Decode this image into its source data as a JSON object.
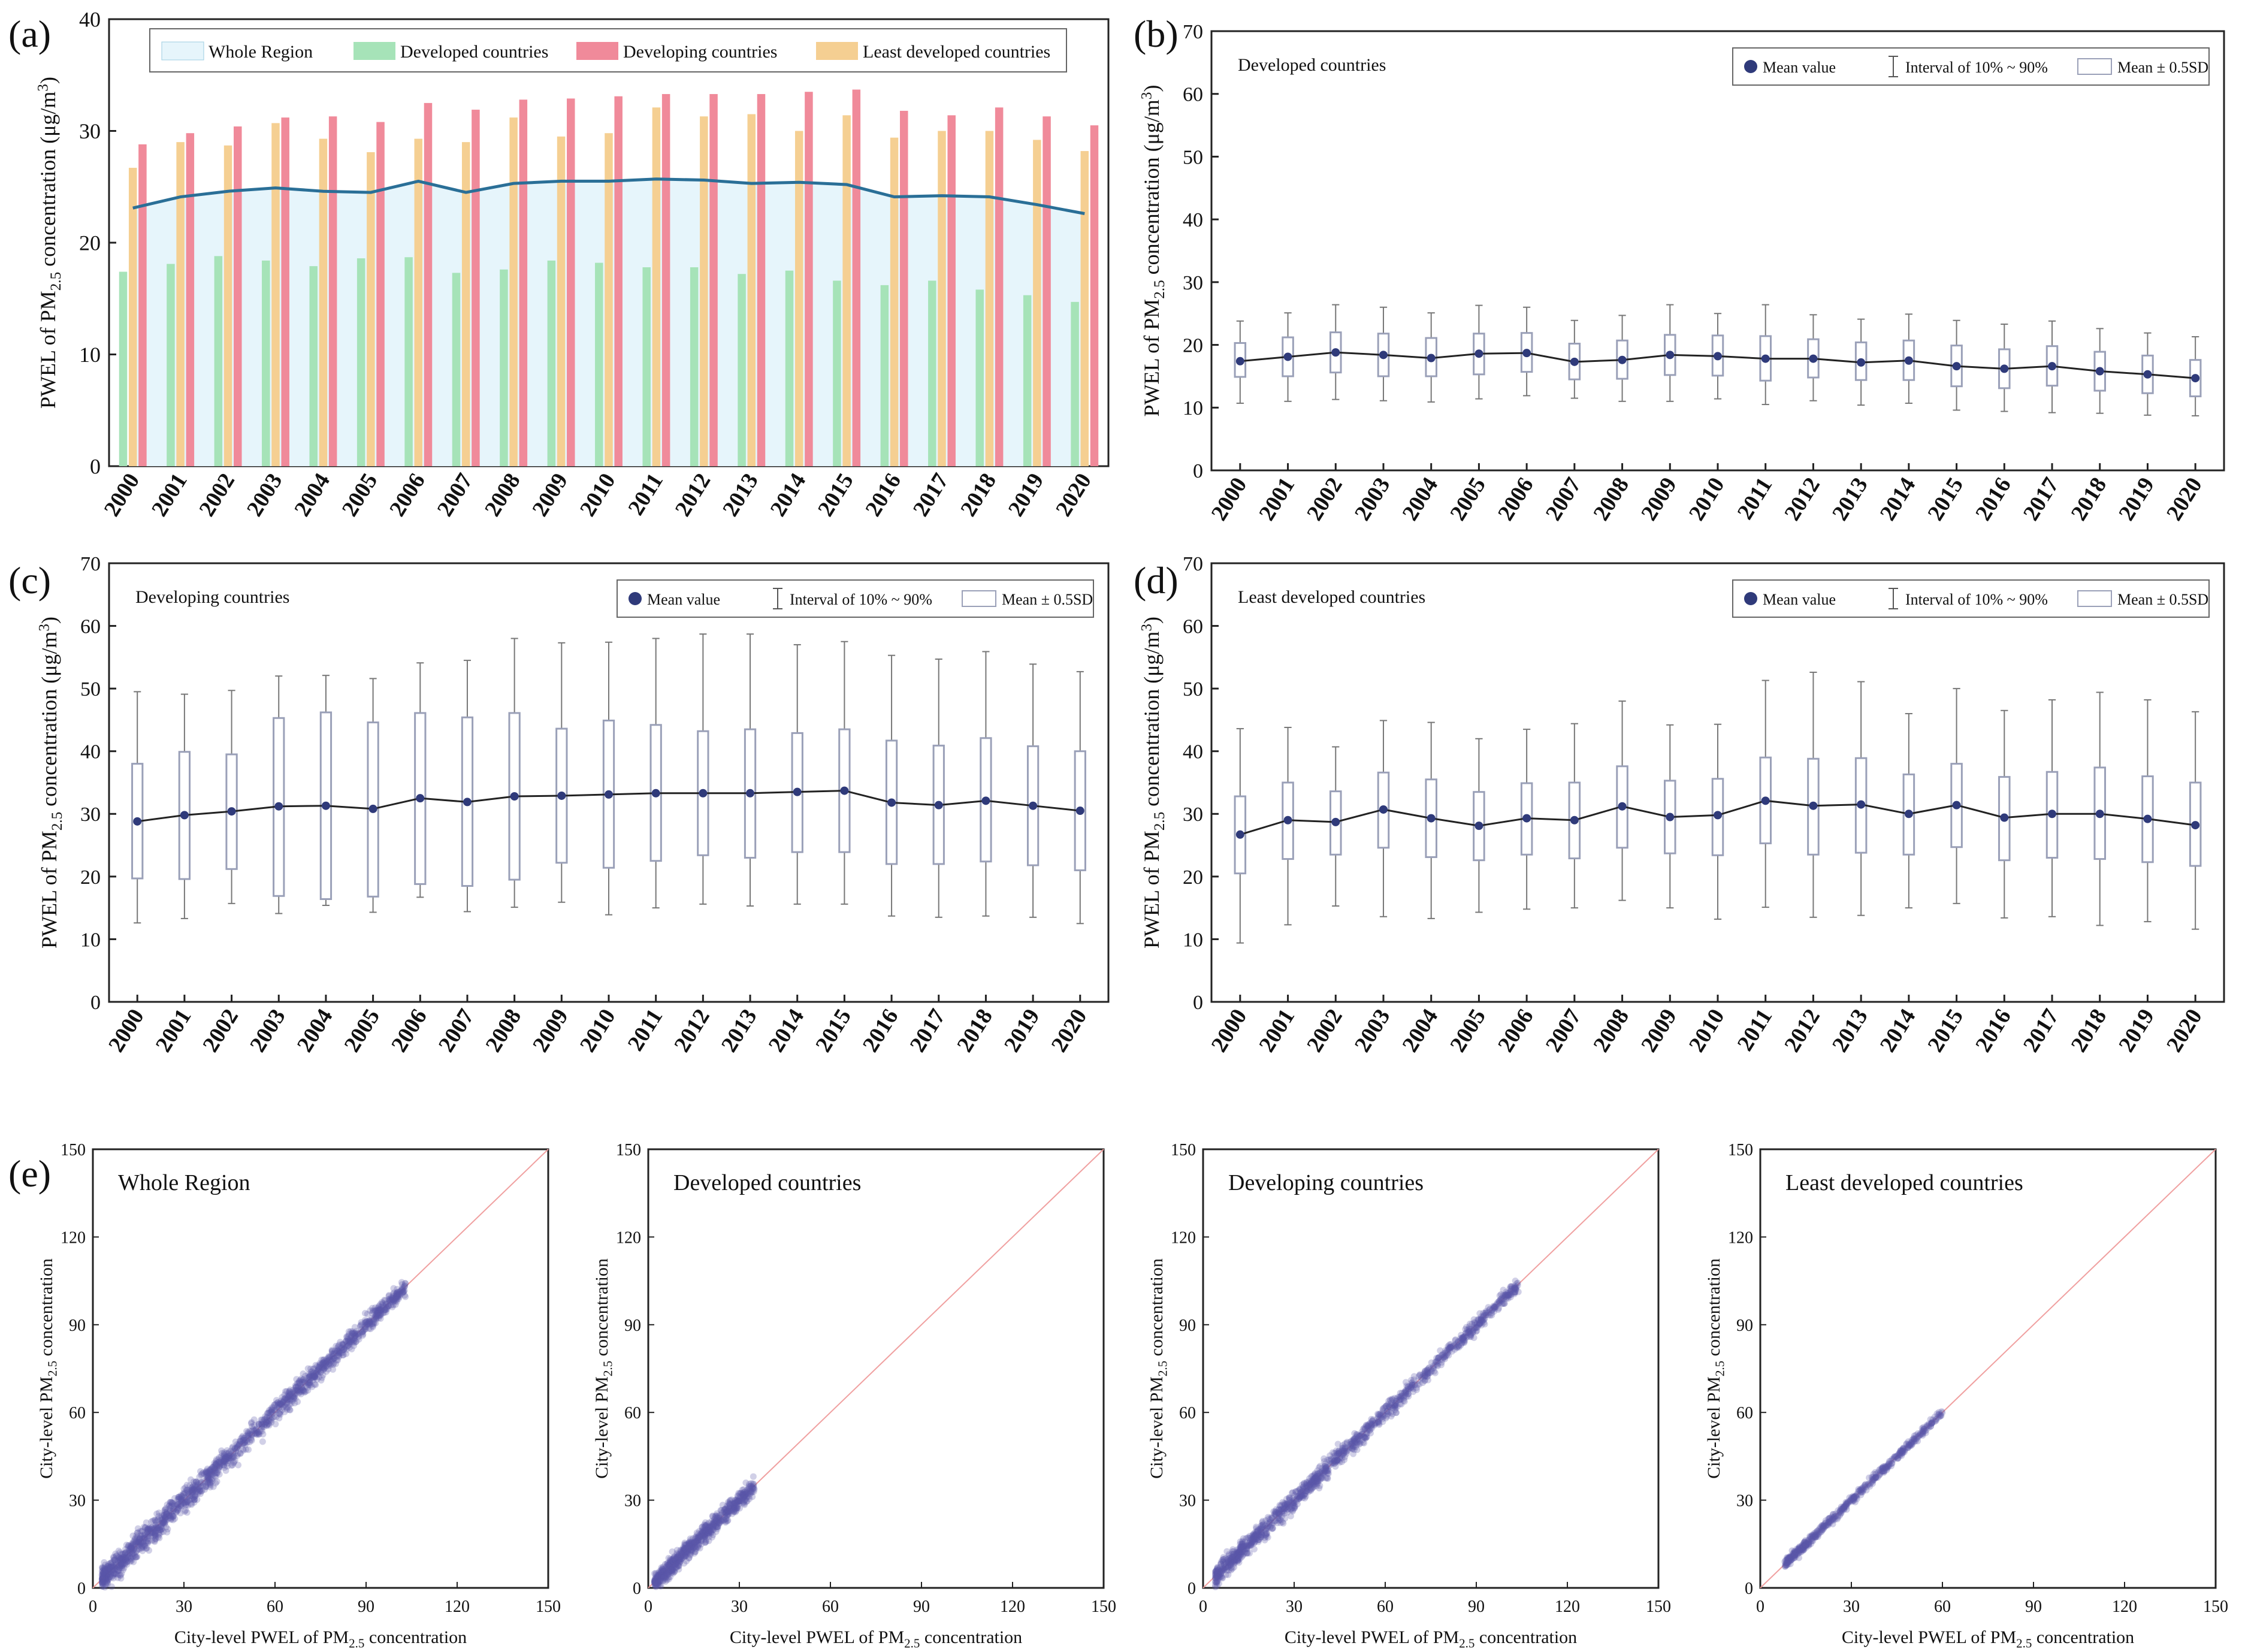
{
  "years": [
    "2000",
    "2001",
    "2002",
    "2003",
    "2004",
    "2005",
    "2006",
    "2007",
    "2008",
    "2009",
    "2010",
    "2011",
    "2012",
    "2013",
    "2014",
    "2015",
    "2016",
    "2017",
    "2018",
    "2019",
    "2020"
  ],
  "colors": {
    "developed": "#a6e3b8",
    "developing": "#f08a9a",
    "least": "#f5cf92",
    "whole_line": "#2a6f97",
    "whole_fill": "#e6f5fb",
    "mean_dot": "#2f3a7a",
    "box": "#9aa0b8",
    "scatter": "#5b55a8",
    "diag": "#f0a0a0",
    "axis": "#222222"
  },
  "panels": {
    "a": {
      "label": "(a)",
      "ylabel": "PWEL of PM",
      "ylabel_sub": "2.5",
      "ylabel_rest": " concentration (μg/m",
      "ylabel_sup": "3",
      "ylabel_end": ")",
      "legend": [
        "Whole Region",
        "Developed countries",
        "Developing countries",
        "Least developed countries"
      ]
    },
    "b": {
      "label": "(b)",
      "title": "Developed countries"
    },
    "c": {
      "label": "(c)",
      "title": "Developing countries"
    },
    "d": {
      "label": "(d)",
      "title": "Least developed countries"
    },
    "box_legend": [
      "Mean value",
      "Interval of 10% ~ 90%",
      "Mean ± 0.5SD"
    ],
    "e": {
      "label": "(e)",
      "titles": [
        "Whole Region",
        "Developed countries",
        "Developing countries",
        "Least developed countries"
      ],
      "ylabel": "City-level PM",
      "ylabel_sub": "2.5",
      "ylabel_rest": " concentration",
      "xlabel": "City-level PWEL of PM",
      "xlabel_sub": "2.5",
      "xlabel_rest": " concentration"
    }
  },
  "chart_data": [
    {
      "id": "a",
      "type": "bar",
      "title": "",
      "xlabel": "",
      "ylabel": "PWEL of PM2.5 concentration (μg/m3)",
      "ylim": [
        0,
        40
      ],
      "yticks": [
        0,
        10,
        20,
        30,
        40
      ],
      "categories": [
        "2000",
        "2001",
        "2002",
        "2003",
        "2004",
        "2005",
        "2006",
        "2007",
        "2008",
        "2009",
        "2010",
        "2011",
        "2012",
        "2013",
        "2014",
        "2015",
        "2016",
        "2017",
        "2018",
        "2019",
        "2020"
      ],
      "series": [
        {
          "name": "Developed countries",
          "values": [
            17.4,
            18.1,
            18.8,
            18.4,
            17.9,
            18.6,
            18.7,
            17.3,
            17.6,
            18.4,
            18.2,
            17.8,
            17.8,
            17.2,
            17.5,
            16.6,
            16.2,
            16.6,
            15.8,
            15.3,
            14.7
          ]
        },
        {
          "name": "Least developed countries",
          "values": [
            26.7,
            29.0,
            28.7,
            30.7,
            29.3,
            28.1,
            29.3,
            29.0,
            31.2,
            29.5,
            29.8,
            32.1,
            31.3,
            31.5,
            30.0,
            31.4,
            29.4,
            30.0,
            30.0,
            29.2,
            28.2
          ]
        },
        {
          "name": "Developing countries",
          "values": [
            28.8,
            29.8,
            30.4,
            31.2,
            31.3,
            30.8,
            32.5,
            31.9,
            32.8,
            32.9,
            33.1,
            33.3,
            33.3,
            33.3,
            33.5,
            33.7,
            31.8,
            31.4,
            32.1,
            31.3,
            30.5
          ]
        },
        {
          "name": "Whole Region",
          "type": "line",
          "values": [
            23.1,
            24.1,
            24.6,
            24.9,
            24.6,
            24.5,
            25.5,
            24.5,
            25.3,
            25.5,
            25.5,
            25.7,
            25.6,
            25.3,
            25.4,
            25.2,
            24.1,
            24.2,
            24.1,
            23.4,
            22.6
          ]
        }
      ]
    },
    {
      "id": "b",
      "type": "box",
      "title": "Developed countries",
      "ylabel": "PWEL of PM2.5 concentration (μg/m3)",
      "ylim": [
        0,
        70
      ],
      "yticks": [
        0,
        10,
        20,
        30,
        40,
        50,
        60,
        70
      ],
      "categories": [
        "2000",
        "2001",
        "2002",
        "2003",
        "2004",
        "2005",
        "2006",
        "2007",
        "2008",
        "2009",
        "2010",
        "2011",
        "2012",
        "2013",
        "2014",
        "2015",
        "2016",
        "2017",
        "2018",
        "2019",
        "2020"
      ],
      "mean": [
        17.4,
        18.1,
        18.8,
        18.4,
        17.9,
        18.6,
        18.7,
        17.3,
        17.6,
        18.4,
        18.2,
        17.8,
        17.8,
        17.2,
        17.5,
        16.6,
        16.2,
        16.6,
        15.8,
        15.3,
        14.7
      ],
      "p10": [
        10.7,
        11.0,
        11.3,
        11.1,
        10.9,
        11.4,
        11.9,
        11.5,
        11.0,
        11.0,
        11.4,
        10.5,
        11.1,
        10.4,
        10.7,
        9.6,
        9.4,
        9.2,
        9.1,
        8.8,
        8.7
      ],
      "p90": [
        23.8,
        25.1,
        26.4,
        26.0,
        25.1,
        26.3,
        26.0,
        23.9,
        24.7,
        26.4,
        25.0,
        26.4,
        24.8,
        24.1,
        24.9,
        23.9,
        23.3,
        23.8,
        22.6,
        21.9,
        21.3
      ],
      "sd_lo": [
        14.9,
        15.0,
        15.6,
        15.0,
        15.0,
        15.3,
        15.7,
        14.5,
        14.6,
        15.2,
        15.1,
        14.3,
        14.8,
        14.4,
        14.4,
        13.4,
        13.1,
        13.5,
        12.7,
        12.3,
        11.8
      ],
      "sd_hi": [
        20.3,
        21.2,
        22.0,
        21.8,
        21.1,
        21.8,
        21.9,
        20.2,
        20.7,
        21.6,
        21.5,
        21.4,
        20.9,
        20.4,
        20.7,
        19.9,
        19.3,
        19.8,
        18.9,
        18.3,
        17.6
      ]
    },
    {
      "id": "c",
      "type": "box",
      "title": "Developing countries",
      "ylabel": "PWEL of PM2.5 concentration (μg/m3)",
      "ylim": [
        0,
        70
      ],
      "yticks": [
        0,
        10,
        20,
        30,
        40,
        50,
        60,
        70
      ],
      "categories": [
        "2000",
        "2001",
        "2002",
        "2003",
        "2004",
        "2005",
        "2006",
        "2007",
        "2008",
        "2009",
        "2010",
        "2011",
        "2012",
        "2013",
        "2014",
        "2015",
        "2016",
        "2017",
        "2018",
        "2019",
        "2020"
      ],
      "mean": [
        28.8,
        29.8,
        30.4,
        31.2,
        31.3,
        30.8,
        32.5,
        31.9,
        32.8,
        32.9,
        33.1,
        33.3,
        33.3,
        33.3,
        33.5,
        33.7,
        31.8,
        31.4,
        32.1,
        31.3,
        30.5
      ],
      "p10": [
        12.6,
        13.3,
        15.7,
        14.1,
        15.4,
        14.3,
        16.7,
        14.4,
        15.1,
        15.9,
        13.9,
        15.0,
        15.6,
        15.3,
        15.6,
        15.6,
        13.7,
        13.5,
        13.7,
        13.5,
        12.5
      ],
      "p90": [
        49.5,
        49.1,
        49.7,
        52.0,
        52.1,
        51.6,
        54.1,
        54.5,
        58.0,
        57.3,
        57.4,
        58.0,
        58.7,
        58.7,
        57.0,
        57.5,
        55.3,
        54.7,
        55.9,
        53.9,
        52.7
      ],
      "sd_lo": [
        19.7,
        19.6,
        21.2,
        16.9,
        16.4,
        16.8,
        18.8,
        18.5,
        19.5,
        22.2,
        21.4,
        22.5,
        23.4,
        23.0,
        23.9,
        23.9,
        22.0,
        22.0,
        22.4,
        21.8,
        21.0
      ],
      "sd_hi": [
        38.0,
        39.9,
        39.5,
        45.3,
        46.2,
        44.6,
        46.1,
        45.4,
        46.1,
        43.6,
        44.9,
        44.2,
        43.2,
        43.5,
        42.9,
        43.5,
        41.7,
        40.9,
        42.1,
        40.8,
        40.0
      ]
    },
    {
      "id": "d",
      "type": "box",
      "title": "Least developed countries",
      "ylabel": "PWEL of PM2.5 concentration (μg/m3)",
      "ylim": [
        0,
        70
      ],
      "yticks": [
        0,
        10,
        20,
        30,
        40,
        50,
        60,
        70
      ],
      "categories": [
        "2000",
        "2001",
        "2002",
        "2003",
        "2004",
        "2005",
        "2006",
        "2007",
        "2008",
        "2009",
        "2010",
        "2011",
        "2012",
        "2013",
        "2014",
        "2015",
        "2016",
        "2017",
        "2018",
        "2019",
        "2020"
      ],
      "mean": [
        26.7,
        29.0,
        28.7,
        30.7,
        29.3,
        28.1,
        29.3,
        29.0,
        31.2,
        29.5,
        29.8,
        32.1,
        31.3,
        31.5,
        30.0,
        31.4,
        29.4,
        30.0,
        30.0,
        29.2,
        28.2
      ],
      "p10": [
        9.4,
        12.3,
        15.3,
        13.6,
        13.3,
        14.3,
        14.8,
        15.0,
        16.2,
        15.0,
        13.2,
        15.1,
        13.5,
        13.8,
        15.0,
        15.7,
        13.4,
        13.6,
        12.2,
        12.8,
        11.6
      ],
      "p90": [
        43.6,
        43.8,
        40.7,
        44.9,
        44.6,
        42.0,
        43.5,
        44.4,
        48.0,
        44.2,
        44.3,
        51.3,
        52.6,
        51.1,
        46.0,
        50.0,
        46.5,
        48.2,
        49.4,
        48.2,
        46.3
      ],
      "sd_lo": [
        20.5,
        22.8,
        23.5,
        24.6,
        23.1,
        22.6,
        23.5,
        22.9,
        24.6,
        23.7,
        23.4,
        25.3,
        23.5,
        23.8,
        23.5,
        24.7,
        22.6,
        23.0,
        22.8,
        22.3,
        21.7
      ],
      "sd_hi": [
        32.8,
        35.0,
        33.6,
        36.6,
        35.5,
        33.5,
        34.9,
        35.0,
        37.6,
        35.3,
        35.6,
        39.0,
        38.8,
        38.9,
        36.3,
        38.0,
        35.9,
        36.7,
        37.4,
        36.0,
        35.0
      ]
    },
    {
      "id": "e",
      "type": "scatter",
      "panels": [
        "Whole Region",
        "Developed countries",
        "Developing countries",
        "Least developed countries"
      ],
      "xlim": [
        0,
        150
      ],
      "ylim": [
        0,
        150
      ],
      "ticks": [
        0,
        30,
        60,
        90,
        120,
        150
      ],
      "xlabel": "City-level PWEL of PM2.5 concentration",
      "ylabel": "City-level PM2.5 concentration",
      "clusters": [
        {
          "x_range": [
            3,
            103
          ],
          "spread": 4.5,
          "count": 1500
        },
        {
          "x_range": [
            2,
            35
          ],
          "spread": 3.2,
          "count": 700
        },
        {
          "x_range": [
            4,
            104
          ],
          "spread": 3.5,
          "count": 1200
        },
        {
          "x_range": [
            8,
            60
          ],
          "spread": 1.6,
          "count": 500
        }
      ]
    }
  ]
}
